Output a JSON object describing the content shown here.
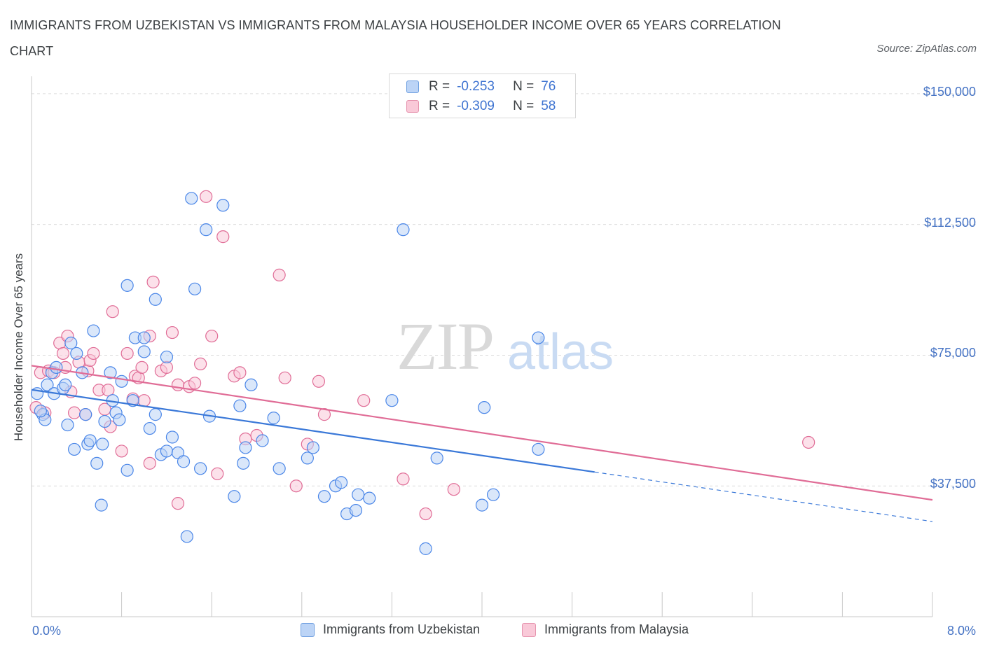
{
  "title": "IMMIGRANTS FROM UZBEKISTAN VS IMMIGRANTS FROM MALAYSIA HOUSEHOLDER INCOME OVER 65 YEARS CORRELATION CHART",
  "source": "Source: ZipAtlas.com",
  "watermark": {
    "zip": "ZIP",
    "atlas": "atlas"
  },
  "colors": {
    "blue": "#4a86e8",
    "blue_fill": "#bcd4f6",
    "pink": "#e06c96",
    "pink_fill": "#f9c9d8",
    "axis_text": "#4472c4"
  },
  "legend": {
    "rows": [
      {
        "r_label": "R =",
        "r_value": "-0.253",
        "n_label": "N =",
        "n_value": "76"
      },
      {
        "r_label": "R =",
        "r_value": "-0.309",
        "n_label": "N =",
        "n_value": "58"
      }
    ]
  },
  "chart_data": {
    "type": "scatter",
    "title": "IMMIGRANTS FROM UZBEKISTAN VS IMMIGRANTS FROM MALAYSIA HOUSEHOLDER INCOME OVER 65 YEARS CORRELATION CHART",
    "xlabel": "",
    "ylabel": "Householder Income Over 65 years",
    "xlim": [
      0,
      8.0
    ],
    "ylim": [
      0,
      155000
    ],
    "x_tick_labels": [
      "0.0%",
      "8.0%"
    ],
    "y_ticks": [
      37500,
      75000,
      112500,
      150000
    ],
    "y_tick_labels": [
      "$37,500",
      "$75,000",
      "$112,500",
      "$150,000"
    ],
    "grid": true,
    "legend_position": "top-center",
    "series": [
      {
        "name": "Immigrants from Uzbekistan",
        "color": "#4a86e8",
        "trend": {
          "x0": 0.0,
          "y0": 65100,
          "x1": 5.0,
          "y1": 41500,
          "dashed_to_x": 8.0,
          "dashed_to_y": 27300
        },
        "points": [
          [
            0.05,
            64000
          ],
          [
            0.1,
            58000
          ],
          [
            0.12,
            56500
          ],
          [
            0.14,
            66500
          ],
          [
            0.18,
            70000
          ],
          [
            0.2,
            64000
          ],
          [
            0.22,
            71500
          ],
          [
            0.28,
            65500
          ],
          [
            0.3,
            66500
          ],
          [
            0.32,
            55000
          ],
          [
            0.35,
            78500
          ],
          [
            0.38,
            48000
          ],
          [
            0.4,
            75500
          ],
          [
            0.45,
            70000
          ],
          [
            0.48,
            58000
          ],
          [
            0.5,
            49500
          ],
          [
            0.52,
            50500
          ],
          [
            0.55,
            82000
          ],
          [
            0.58,
            44000
          ],
          [
            0.62,
            32000
          ],
          [
            0.63,
            49500
          ],
          [
            0.65,
            56000
          ],
          [
            0.7,
            70000
          ],
          [
            0.72,
            62000
          ],
          [
            0.75,
            58500
          ],
          [
            0.78,
            56500
          ],
          [
            0.8,
            67500
          ],
          [
            0.85,
            42000
          ],
          [
            0.85,
            95000
          ],
          [
            0.9,
            62000
          ],
          [
            0.92,
            80000
          ],
          [
            1.0,
            80000
          ],
          [
            1.0,
            76000
          ],
          [
            1.05,
            54000
          ],
          [
            1.1,
            58000
          ],
          [
            1.1,
            91000
          ],
          [
            1.15,
            46500
          ],
          [
            1.2,
            47500
          ],
          [
            1.2,
            74500
          ],
          [
            1.25,
            51500
          ],
          [
            1.3,
            47000
          ],
          [
            1.35,
            44500
          ],
          [
            1.38,
            23000
          ],
          [
            1.42,
            120000
          ],
          [
            1.45,
            94000
          ],
          [
            1.5,
            42500
          ],
          [
            1.55,
            111000
          ],
          [
            1.58,
            57500
          ],
          [
            1.7,
            118000
          ],
          [
            1.8,
            34500
          ],
          [
            1.85,
            60500
          ],
          [
            1.88,
            44000
          ],
          [
            1.9,
            48500
          ],
          [
            1.95,
            66500
          ],
          [
            2.05,
            50500
          ],
          [
            2.15,
            57000
          ],
          [
            2.2,
            42500
          ],
          [
            2.45,
            45500
          ],
          [
            2.5,
            48500
          ],
          [
            2.6,
            34500
          ],
          [
            2.7,
            37500
          ],
          [
            2.75,
            38500
          ],
          [
            2.8,
            29500
          ],
          [
            2.88,
            30500
          ],
          [
            2.9,
            35000
          ],
          [
            3.0,
            34000
          ],
          [
            3.2,
            62000
          ],
          [
            3.3,
            111000
          ],
          [
            3.5,
            19500
          ],
          [
            3.6,
            45500
          ],
          [
            4.0,
            32000
          ],
          [
            4.02,
            60000
          ],
          [
            4.1,
            35000
          ],
          [
            4.5,
            80000
          ],
          [
            4.5,
            48000
          ],
          [
            0.08,
            59000
          ]
        ]
      },
      {
        "name": "Immigrants from Malaysia",
        "color": "#e06c96",
        "trend": {
          "x0": 0.0,
          "y0": 72000,
          "x1": 8.0,
          "y1": 33500
        },
        "points": [
          [
            0.04,
            60000
          ],
          [
            0.08,
            70000
          ],
          [
            0.12,
            58500
          ],
          [
            0.15,
            70500
          ],
          [
            0.2,
            70000
          ],
          [
            0.25,
            78500
          ],
          [
            0.28,
            75500
          ],
          [
            0.3,
            71500
          ],
          [
            0.32,
            80500
          ],
          [
            0.35,
            64500
          ],
          [
            0.38,
            58500
          ],
          [
            0.42,
            73000
          ],
          [
            0.48,
            58000
          ],
          [
            0.5,
            70500
          ],
          [
            0.52,
            73500
          ],
          [
            0.55,
            75500
          ],
          [
            0.6,
            65000
          ],
          [
            0.65,
            59500
          ],
          [
            0.68,
            65000
          ],
          [
            0.7,
            54500
          ],
          [
            0.72,
            87500
          ],
          [
            0.8,
            47500
          ],
          [
            0.85,
            75500
          ],
          [
            0.9,
            62500
          ],
          [
            0.92,
            69000
          ],
          [
            0.95,
            68500
          ],
          [
            0.98,
            71500
          ],
          [
            1.0,
            62000
          ],
          [
            1.05,
            80500
          ],
          [
            1.05,
            44000
          ],
          [
            1.08,
            96000
          ],
          [
            1.15,
            70500
          ],
          [
            1.2,
            71500
          ],
          [
            1.25,
            81500
          ],
          [
            1.3,
            66500
          ],
          [
            1.3,
            32500
          ],
          [
            1.4,
            66000
          ],
          [
            1.45,
            67000
          ],
          [
            1.5,
            72500
          ],
          [
            1.55,
            120500
          ],
          [
            1.6,
            80500
          ],
          [
            1.65,
            41000
          ],
          [
            1.7,
            109000
          ],
          [
            1.8,
            69000
          ],
          [
            1.85,
            70000
          ],
          [
            1.9,
            51000
          ],
          [
            2.0,
            52000
          ],
          [
            2.2,
            98000
          ],
          [
            2.25,
            68500
          ],
          [
            2.35,
            37500
          ],
          [
            2.45,
            49500
          ],
          [
            2.55,
            67500
          ],
          [
            2.6,
            58000
          ],
          [
            2.95,
            62000
          ],
          [
            3.3,
            39500
          ],
          [
            3.5,
            29500
          ],
          [
            3.75,
            36500
          ],
          [
            6.9,
            50000
          ]
        ]
      }
    ]
  }
}
